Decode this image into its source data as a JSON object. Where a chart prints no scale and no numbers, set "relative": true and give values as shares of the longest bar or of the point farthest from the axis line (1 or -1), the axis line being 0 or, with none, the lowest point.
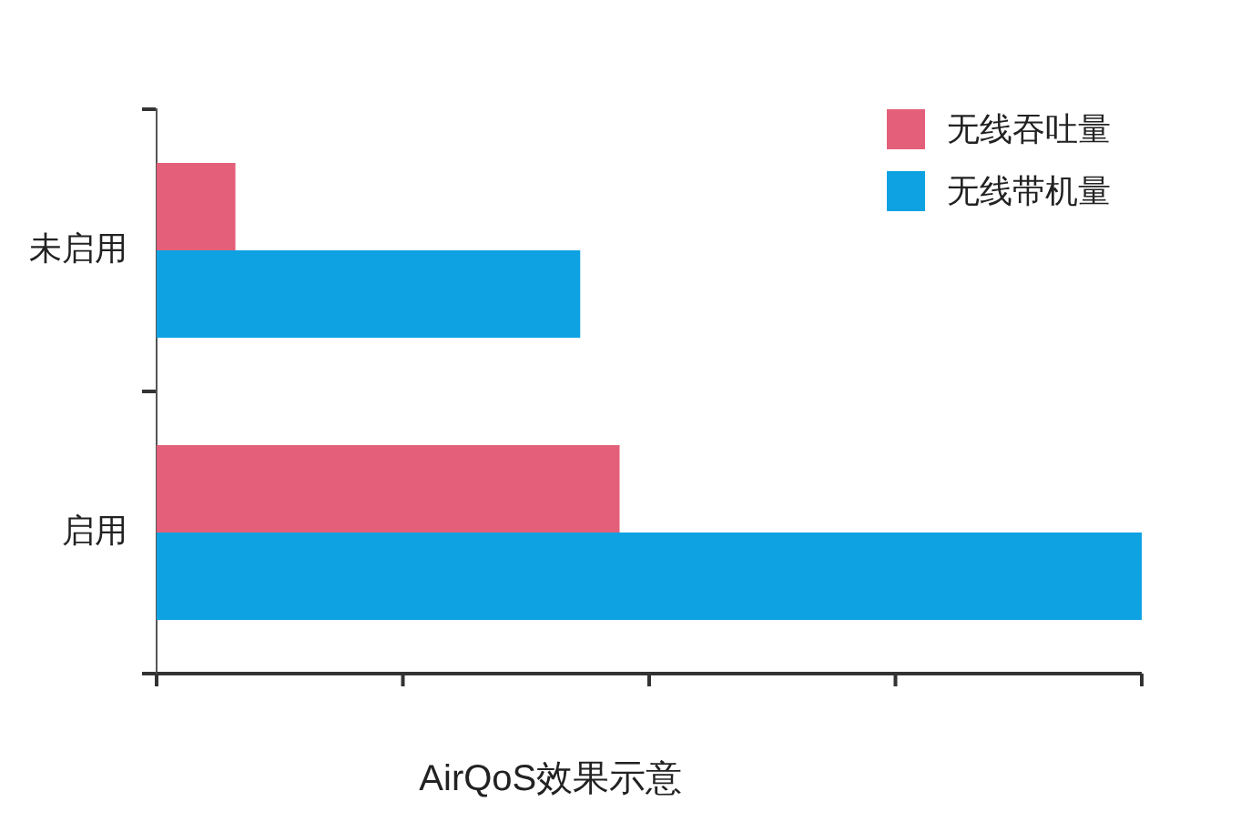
{
  "chart_data": {
    "type": "bar",
    "orientation": "horizontal",
    "relative": true,
    "title": "AirQoS效果示意",
    "categories": [
      "未启用",
      "启用"
    ],
    "series": [
      {
        "name": "无线吞吐量",
        "color": "#e4607a",
        "values": [
          0.08,
          0.47
        ]
      },
      {
        "name": "无线带机量",
        "color": "#0ea2e2",
        "values": [
          0.43,
          1
        ]
      }
    ],
    "legend": "top right"
  }
}
